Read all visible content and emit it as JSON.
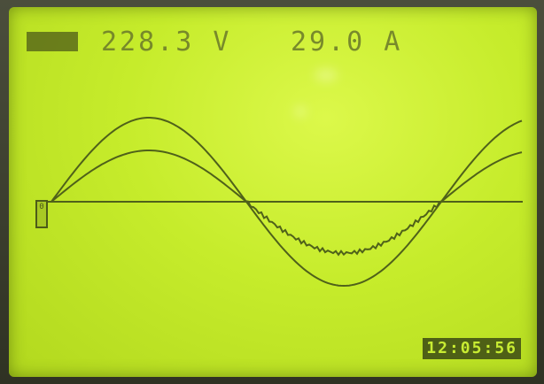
{
  "screen": {
    "mode_badge": "",
    "voltage": "228.3 V",
    "current": "29.0 A",
    "time": "12:05:56",
    "channel_marker": "0"
  },
  "colors": {
    "lcd": "#c6ec2b",
    "ink": "#4d5c18",
    "trace": "#4f611a"
  }
}
